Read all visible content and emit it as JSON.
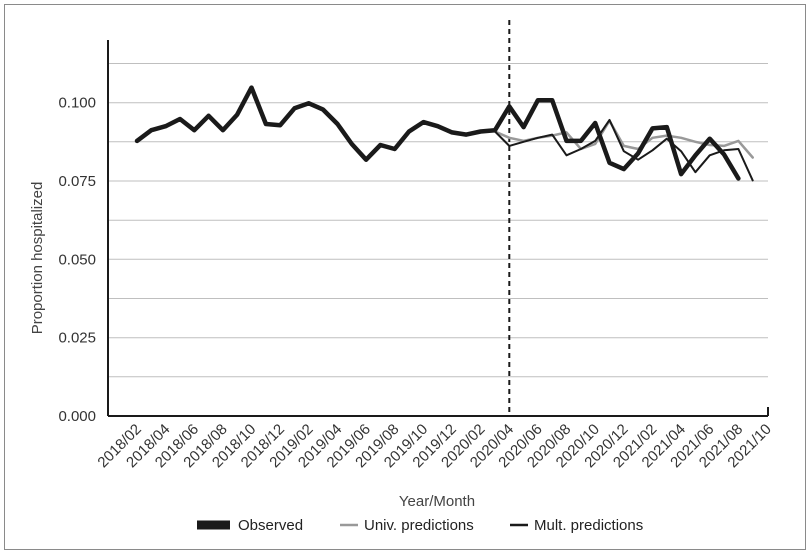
{
  "chart_data": {
    "type": "line",
    "title": "",
    "xlabel": "Year/Month",
    "ylabel": "Proportion hospitalized",
    "ylim": [
      0,
      0.12
    ],
    "y_ticks": [
      "0.000",
      "0.025",
      "0.050",
      "0.075",
      "0.100"
    ],
    "x_tick_labels": [
      "2018/02",
      "2018/04",
      "2018/06",
      "2018/08",
      "2018/10",
      "2018/12",
      "2019/02",
      "2019/04",
      "2019/06",
      "2019/08",
      "2019/10",
      "2019/12",
      "2020/02",
      "2020/04",
      "2020/06",
      "2020/08",
      "2020/10",
      "2020/12",
      "2021/02",
      "2021/04",
      "2021/06",
      "2021/08",
      "2021/10"
    ],
    "grid": "horizontal",
    "legend_position": "bottom",
    "vertical_reference_line": "2020/04",
    "colors": {
      "observed": "#1a1a1a",
      "univ": "#999999",
      "mult": "#1a1a1a",
      "grid": "#bfbfbf",
      "axis": "#1a1a1a"
    },
    "series": [
      {
        "name": "Observed",
        "start": "2018/02",
        "values": [
          0.0878,
          0.0912,
          0.0925,
          0.0948,
          0.0912,
          0.0958,
          0.0912,
          0.0962,
          0.1048,
          0.0932,
          0.0928,
          0.0982,
          0.0998,
          0.0978,
          0.0932,
          0.0868,
          0.0818,
          0.0865,
          0.0852,
          0.0908,
          0.0938,
          0.0925,
          0.0905,
          0.0898,
          0.0908,
          0.0912,
          0.0988,
          0.0922,
          0.1008,
          0.1008,
          0.0878,
          0.0878,
          0.0935,
          0.0808,
          0.0788,
          0.0838,
          0.0918,
          0.0922,
          0.0772,
          0.0832,
          0.0885,
          0.0835,
          0.0758
        ]
      },
      {
        "name": "Univ. predictions",
        "start": "2020/03",
        "values": [
          0.0908,
          0.0888,
          0.0878,
          0.0888,
          0.0895,
          0.0905,
          0.0852,
          0.0868,
          0.0942,
          0.0862,
          0.0852,
          0.0888,
          0.0895,
          0.0888,
          0.0875,
          0.0865,
          0.0862,
          0.0878,
          0.0825
        ]
      },
      {
        "name": "Mult. predictions",
        "start": "2020/03",
        "values": [
          0.0908,
          0.0862,
          0.0875,
          0.0888,
          0.0898,
          0.0832,
          0.0852,
          0.0878,
          0.0945,
          0.0845,
          0.0818,
          0.0848,
          0.0885,
          0.0845,
          0.0778,
          0.0832,
          0.0848,
          0.0852,
          0.0752
        ]
      }
    ],
    "legend": {
      "observed": "Observed",
      "univ": "Univ. predictions",
      "mult": "Mult. predictions"
    }
  }
}
